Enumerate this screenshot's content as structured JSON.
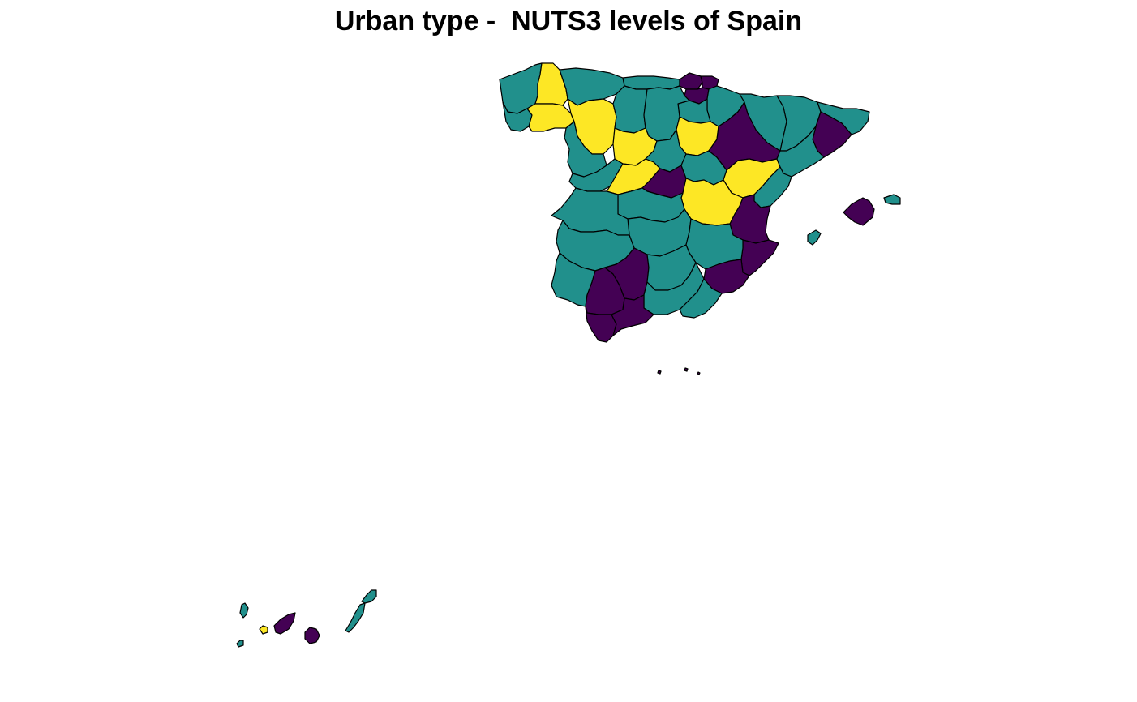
{
  "title": "Urban type -  NUTS3 levels of Spain",
  "legend_classes": [
    {
      "id": "purple",
      "color": "#440154"
    },
    {
      "id": "teal",
      "color": "#21908C"
    },
    {
      "id": "yellow",
      "color": "#FDE725"
    }
  ],
  "regions": [
    {
      "name": "A Coruña",
      "cls": "teal"
    },
    {
      "name": "Lugo",
      "cls": "yellow"
    },
    {
      "name": "Pontevedra",
      "cls": "teal"
    },
    {
      "name": "Ourense",
      "cls": "yellow"
    },
    {
      "name": "Asturias",
      "cls": "teal"
    },
    {
      "name": "Cantabria",
      "cls": "teal"
    },
    {
      "name": "Bizkaia",
      "cls": "purple"
    },
    {
      "name": "Gipuzkoa",
      "cls": "purple"
    },
    {
      "name": "Araba/Álava",
      "cls": "purple"
    },
    {
      "name": "Navarra",
      "cls": "teal"
    },
    {
      "name": "La Rioja",
      "cls": "teal"
    },
    {
      "name": "León",
      "cls": "yellow"
    },
    {
      "name": "Palencia",
      "cls": "teal"
    },
    {
      "name": "Burgos",
      "cls": "teal"
    },
    {
      "name": "Soria",
      "cls": "yellow"
    },
    {
      "name": "Zamora",
      "cls": "teal"
    },
    {
      "name": "Valladolid",
      "cls": "yellow"
    },
    {
      "name": "Segovia",
      "cls": "teal"
    },
    {
      "name": "Salamanca",
      "cls": "teal"
    },
    {
      "name": "Ávila",
      "cls": "yellow"
    },
    {
      "name": "Madrid",
      "cls": "purple"
    },
    {
      "name": "Guadalajara",
      "cls": "teal"
    },
    {
      "name": "Zaragoza",
      "cls": "purple"
    },
    {
      "name": "Huesca",
      "cls": "teal"
    },
    {
      "name": "Teruel",
      "cls": "yellow"
    },
    {
      "name": "Lleida",
      "cls": "teal"
    },
    {
      "name": "Girona",
      "cls": "teal"
    },
    {
      "name": "Barcelona",
      "cls": "purple"
    },
    {
      "name": "Tarragona",
      "cls": "teal"
    },
    {
      "name": "Castellón/Castelló",
      "cls": "teal"
    },
    {
      "name": "Valencia/València",
      "cls": "purple"
    },
    {
      "name": "Alicante/Alacant",
      "cls": "purple"
    },
    {
      "name": "Cuenca",
      "cls": "yellow"
    },
    {
      "name": "Cáceres",
      "cls": "teal"
    },
    {
      "name": "Toledo",
      "cls": "teal"
    },
    {
      "name": "Badajoz",
      "cls": "teal"
    },
    {
      "name": "Ciudad Real",
      "cls": "teal"
    },
    {
      "name": "Albacete",
      "cls": "teal"
    },
    {
      "name": "Murcia",
      "cls": "purple"
    },
    {
      "name": "Huelva",
      "cls": "teal"
    },
    {
      "name": "Sevilla",
      "cls": "purple"
    },
    {
      "name": "Córdoba",
      "cls": "purple"
    },
    {
      "name": "Jaén",
      "cls": "teal"
    },
    {
      "name": "Granada",
      "cls": "teal"
    },
    {
      "name": "Almería",
      "cls": "teal"
    },
    {
      "name": "Cádiz",
      "cls": "purple"
    },
    {
      "name": "Málaga",
      "cls": "purple"
    },
    {
      "name": "Mallorca",
      "cls": "purple"
    },
    {
      "name": "Menorca",
      "cls": "teal"
    },
    {
      "name": "Eivissa y Formentera",
      "cls": "teal"
    },
    {
      "name": "La Palma",
      "cls": "teal"
    },
    {
      "name": "La Gomera",
      "cls": "yellow"
    },
    {
      "name": "El Hierro",
      "cls": "teal"
    },
    {
      "name": "Tenerife",
      "cls": "purple"
    },
    {
      "name": "Gran Canaria",
      "cls": "purple"
    },
    {
      "name": "Fuerteventura",
      "cls": "teal"
    },
    {
      "name": "Lanzarote",
      "cls": "teal"
    }
  ]
}
